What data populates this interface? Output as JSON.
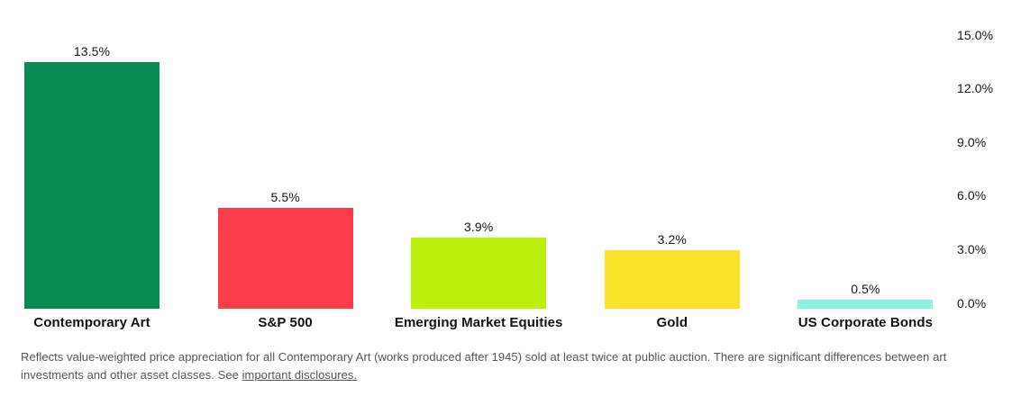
{
  "chart_data": {
    "type": "bar",
    "categories": [
      "Contemporary Art",
      "S&P 500",
      "Emerging Market Equities",
      "Gold",
      "US Corporate Bonds"
    ],
    "values": [
      13.5,
      5.5,
      3.9,
      3.2,
      0.5
    ],
    "value_labels": [
      "13.5%",
      "5.5%",
      "3.9%",
      "3.2%",
      "0.5%"
    ],
    "bar_colors": [
      "#088A52",
      "#FC3B4B",
      "#BBEF0C",
      "#FAE42B",
      "#8DF3E0"
    ],
    "y_ticks": [
      "15.0%",
      "12.0%",
      "9.0%",
      "6.0%",
      "3.0%",
      "0.0%"
    ],
    "ylim": [
      0,
      15
    ],
    "title": "",
    "xlabel": "",
    "ylabel": "",
    "grid": false,
    "legend": false,
    "axis_side": "right",
    "value_labels_position": "above-bars"
  },
  "footer": {
    "text": "Reflects value-weighted price appreciation for all Contemporary Art (works produced after 1945) sold at least twice at public auction. There are significant differences between art investments and other asset classes. See ",
    "link_text": "important disclosures."
  }
}
